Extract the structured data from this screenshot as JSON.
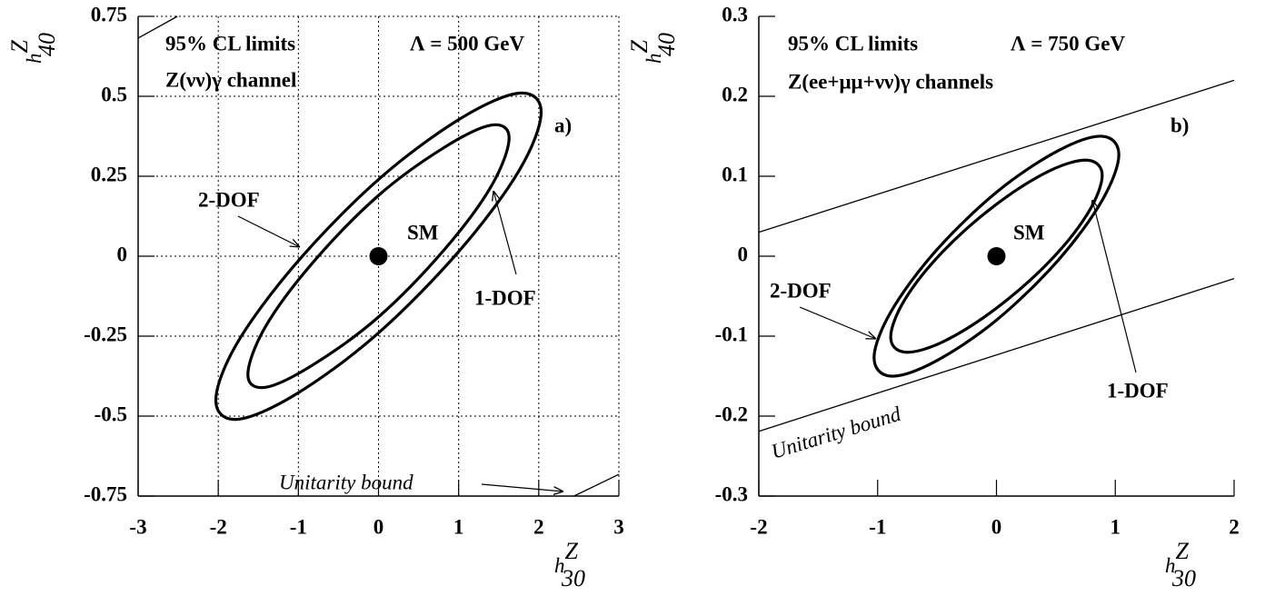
{
  "chart_data": [
    {
      "type": "line",
      "panel_label": "a)",
      "annotations": [
        "95% CL limits",
        "Λ = 500 GeV",
        "Z(νν)γ channel"
      ],
      "x_label": {
        "text": "h",
        "sup": "Z",
        "sub": "30"
      },
      "y_label": {
        "text": "h",
        "sup": "Z",
        "sub": "40"
      },
      "xlim": [
        -3,
        3
      ],
      "xticks": [
        -3,
        -2,
        -1,
        0,
        1,
        2,
        3
      ],
      "ylim": [
        -0.75,
        0.75
      ],
      "yticks": [
        -0.75,
        -0.5,
        -0.25,
        0,
        0.25,
        0.5,
        0.75
      ],
      "grid": true,
      "series": [
        {
          "name": "2-DOF",
          "color": "#000000",
          "closed": true,
          "x": [
            2.03,
            1.76,
            1.02,
            0,
            -1.02,
            -1.76,
            -2.03,
            -1.76,
            -1.02,
            0,
            1.02,
            1.76
          ],
          "y": [
            0.45,
            0.51,
            0.43,
            0.24,
            -0.02,
            -0.27,
            -0.45,
            -0.51,
            -0.43,
            -0.24,
            0.02,
            0.27
          ]
        },
        {
          "name": "1-DOF",
          "color": "#000000",
          "closed": true,
          "x": [
            1.63,
            1.41,
            0.82,
            0,
            -0.82,
            -1.41,
            -1.63,
            -1.41,
            -0.82,
            0,
            0.82,
            1.41
          ],
          "y": [
            0.37,
            0.41,
            0.34,
            0.19,
            -0.02,
            -0.22,
            -0.37,
            -0.41,
            -0.34,
            -0.19,
            0.02,
            0.22
          ]
        },
        {
          "name": "Unitarity bound",
          "color": "#000000",
          "closed": false,
          "x": [
            -3,
            -2.51,
            null,
            2.44,
            3
          ],
          "y": [
            0.682,
            0.75,
            null,
            -0.75,
            -0.682
          ]
        }
      ],
      "points": [
        {
          "name": "SM",
          "x": 0,
          "y": 0,
          "color": "#000000"
        }
      ]
    },
    {
      "type": "line",
      "panel_label": "b)",
      "annotations": [
        "95% CL limits",
        "Λ = 750 GeV",
        "Z(ee+μμ+νν)γ channels"
      ],
      "x_label": {
        "text": "h",
        "sup": "Z",
        "sub": "30"
      },
      "y_label": {
        "text": "h",
        "sup": "Z",
        "sub": "40"
      },
      "xlim": [
        -2,
        2
      ],
      "xticks": [
        -2,
        -1,
        0,
        1,
        2
      ],
      "ylim": [
        -0.3,
        0.3
      ],
      "yticks": [
        -0.3,
        -0.2,
        -0.1,
        0,
        0.1,
        0.2,
        0.3
      ],
      "grid": false,
      "series": [
        {
          "name": "2-DOF",
          "color": "#000000",
          "closed": true,
          "x": [
            1.03,
            0.89,
            0.52,
            0,
            -0.52,
            -0.89,
            -1.03,
            -0.89,
            -0.52,
            0,
            0.52,
            0.89
          ],
          "y": [
            0.127,
            0.15,
            0.132,
            0.08,
            0.005,
            -0.07,
            -0.127,
            -0.15,
            -0.132,
            -0.08,
            -0.005,
            0.07
          ]
        },
        {
          "name": "1-DOF",
          "color": "#000000",
          "closed": true,
          "x": [
            0.89,
            0.77,
            0.45,
            0,
            -0.45,
            -0.77,
            -0.89,
            -0.77,
            -0.45,
            0,
            0.45,
            0.77
          ],
          "y": [
            0.101,
            0.12,
            0.107,
            0.065,
            0.006,
            -0.054,
            -0.101,
            -0.12,
            -0.107,
            -0.065,
            -0.006,
            0.054
          ]
        },
        {
          "name": "Unitarity bound",
          "color": "#000000",
          "closed": false,
          "x": [
            -2,
            2,
            null,
            -2,
            2
          ],
          "y": [
            0.03,
            0.22,
            null,
            -0.219,
            -0.028
          ]
        }
      ],
      "points": [
        {
          "name": "SM",
          "x": 0,
          "y": 0,
          "color": "#000000"
        }
      ]
    }
  ]
}
